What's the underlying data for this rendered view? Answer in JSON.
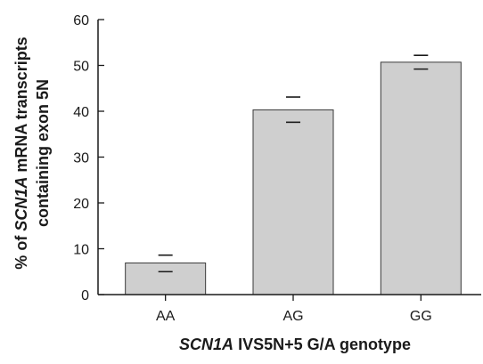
{
  "chart_data": {
    "type": "bar",
    "categories": [
      "AA",
      "AG",
      "GG"
    ],
    "values": [
      6.9,
      40.3,
      50.7
    ],
    "error_upper": [
      8.6,
      43.1,
      52.2
    ],
    "error_lower": [
      5.0,
      37.6,
      49.2
    ],
    "ylim": [
      0,
      60
    ],
    "yticks": [
      "0",
      "10",
      "20",
      "30",
      "40",
      "50",
      "60"
    ],
    "grid": false,
    "legend": "none",
    "bar_color": "#cfcfcf",
    "bar_edge_color": "#3a3a3a",
    "axis_color": "#1a1a1a",
    "xlabel": {
      "italic": "SCN1A",
      "rest": " IVS5N+5 G/A genotype"
    },
    "ylabel": {
      "line1_prefix": "% of ",
      "line1_italic": "SCN1A",
      "line1_suffix": " mRNA transcripts",
      "line2": "containing exon 5N"
    }
  }
}
